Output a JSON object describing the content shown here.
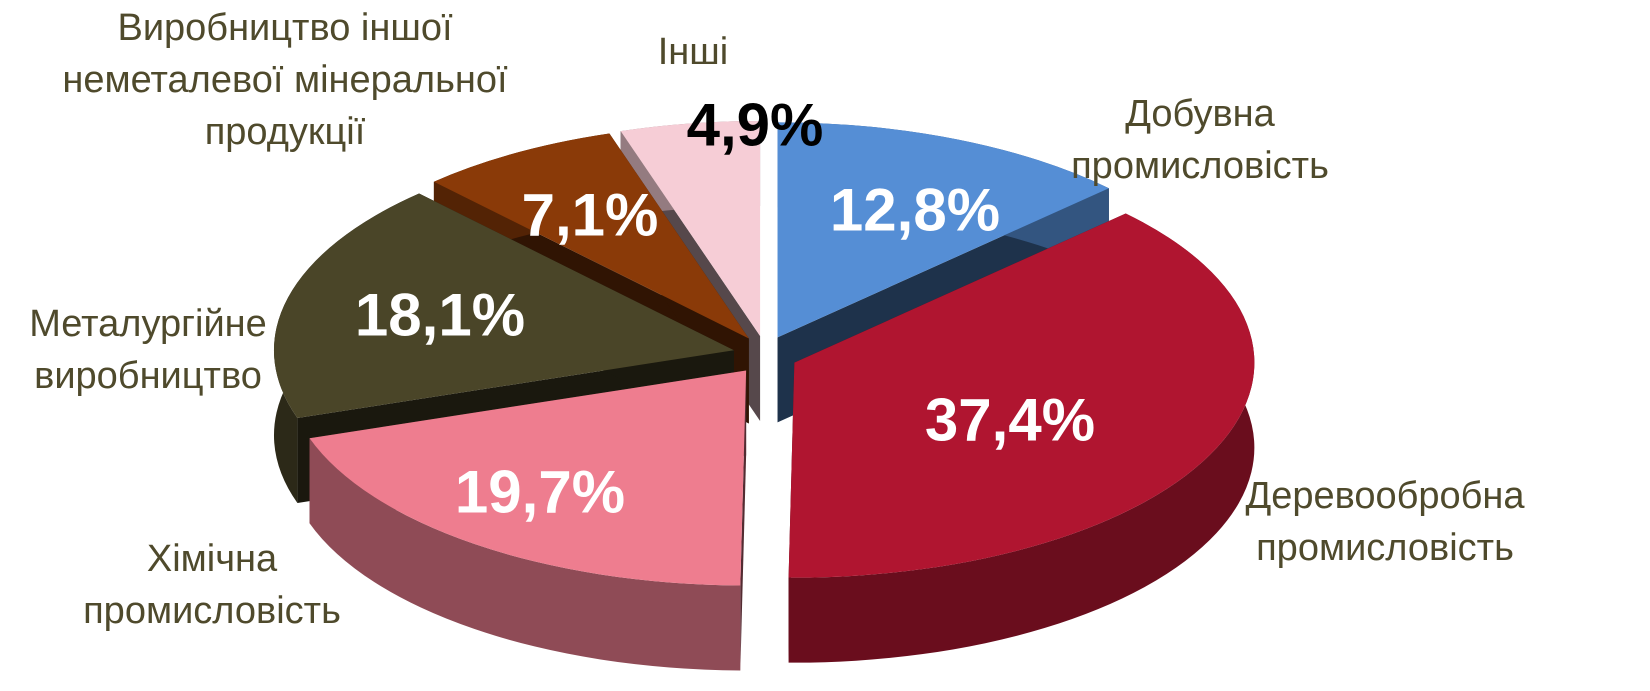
{
  "chart_data": {
    "type": "pie",
    "categories": [
      "Добувна промисловість",
      "Деревообробна промисловість",
      "Хімічна промисловість",
      "Металургійне виробництво",
      "Виробництво іншої неметалевої мінеральної продукції",
      "Інші"
    ],
    "values": [
      12.8,
      37.4,
      19.7,
      18.1,
      7.1,
      4.9
    ],
    "value_labels": [
      "12,8%",
      "37,4%",
      "19,7%",
      "18,1%",
      "7,1%",
      "4,9%"
    ],
    "colors": [
      "#558ed5",
      "#b01530",
      "#ee7d8f",
      "#4a4528",
      "#8a3a08",
      "#f6cdd6"
    ]
  }
}
